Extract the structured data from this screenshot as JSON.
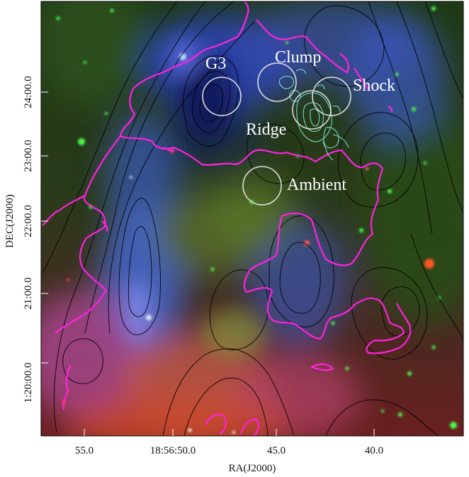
{
  "figure": {
    "x_axis": {
      "label": "RA(J2000)",
      "ticks": [
        "55.0",
        "18:56:50.0",
        "45.0",
        "40.0"
      ]
    },
    "y_axis": {
      "label": "DEC(J2000)",
      "ticks": [
        "24:00.0",
        "23:00.0",
        "22:00.0",
        "21:00.0",
        "1:20:00.0"
      ]
    },
    "regions": [
      {
        "name": "G3"
      },
      {
        "name": "Clump"
      },
      {
        "name": "Shock"
      },
      {
        "name": "Ridge"
      },
      {
        "name": "Ambient"
      }
    ],
    "colors": {
      "contour_black": "#000000",
      "contour_magenta": "#ff22dd",
      "contour_cyan": "#7ff0e0",
      "circle": "#e6e6e6"
    }
  }
}
